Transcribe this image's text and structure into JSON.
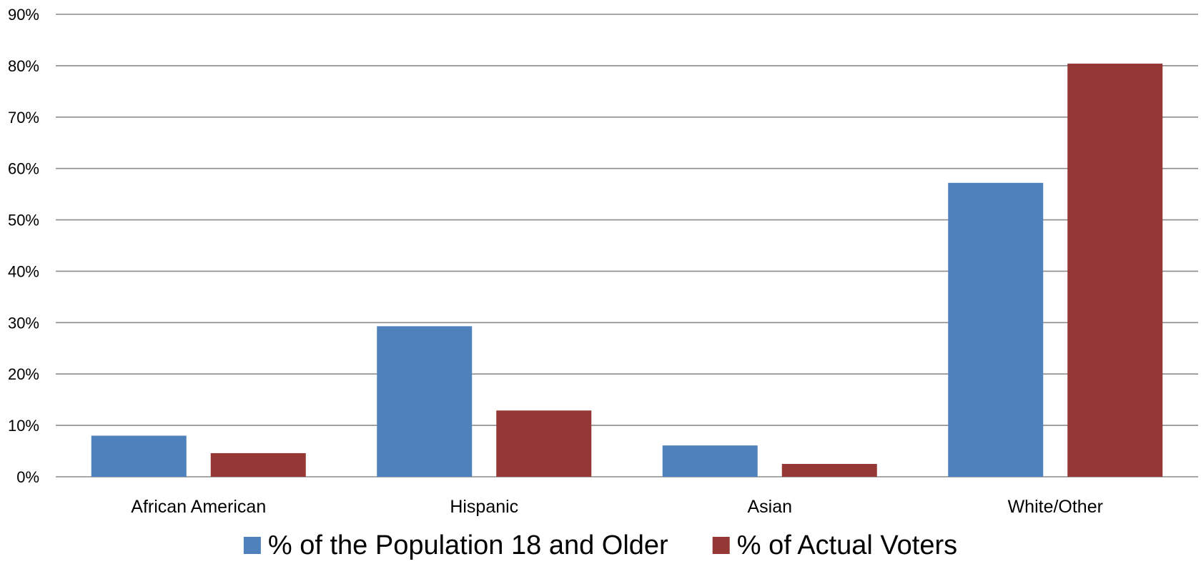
{
  "chart_data": {
    "type": "bar",
    "categories": [
      "African American",
      "Hispanic",
      "Asian",
      "White/Other"
    ],
    "series": [
      {
        "name": "% of the Population 18 and Older",
        "values": [
          8,
          29.3,
          6.1,
          57.2
        ],
        "color": "#4f81bd"
      },
      {
        "name": "% of Actual Voters",
        "values": [
          4.6,
          12.9,
          2.5,
          80.4
        ],
        "color": "#953735"
      }
    ],
    "y_ticks": [
      "0%",
      "10%",
      "20%",
      "30%",
      "40%",
      "50%",
      "60%",
      "70%",
      "80%",
      "90%"
    ],
    "ylim": [
      0,
      90
    ],
    "grid": true,
    "gridline_color": "#8c8c8c",
    "legend_position": "bottom",
    "title": "",
    "xlabel": "",
    "ylabel": ""
  }
}
